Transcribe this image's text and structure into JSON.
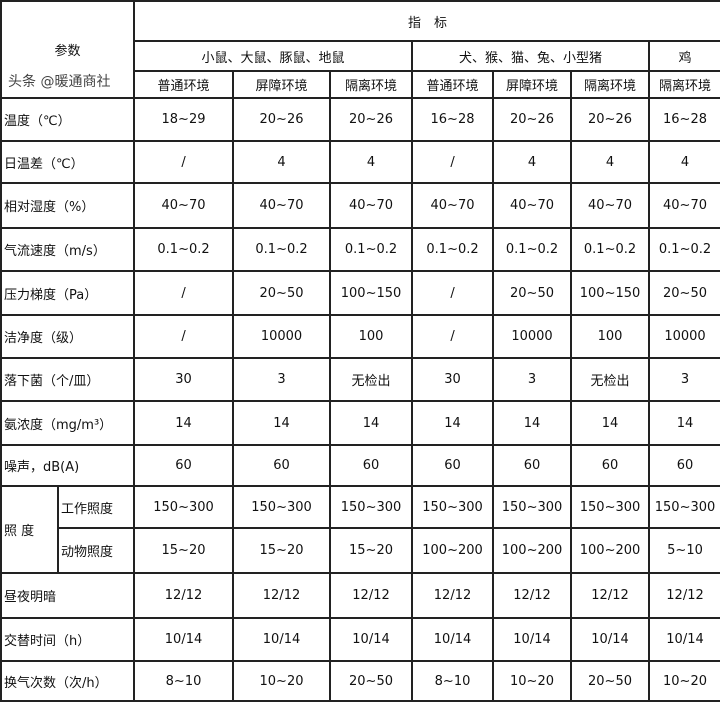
{
  "header": {
    "param_label": "参数",
    "indicator_label": "指　标",
    "groups": [
      "小鼠、大鼠、豚鼠、地鼠",
      "犬、猴、猫、兔、小型猪",
      "鸡"
    ],
    "environments": [
      "普通环境",
      "屏障环境",
      "隔离环境",
      "普通环境",
      "屏障环境",
      "隔离环境",
      "隔离环境"
    ]
  },
  "rows": [
    {
      "label": "温度（℃）",
      "values": [
        "18~29",
        "20~26",
        "20~26",
        "16~28",
        "20~26",
        "20~26",
        "16~28"
      ]
    },
    {
      "label": "日温差（℃）",
      "values": [
        "/",
        "4",
        "4",
        "/",
        "4",
        "4",
        "4"
      ]
    },
    {
      "label": "相对湿度（%）",
      "values": [
        "40~70",
        "40~70",
        "40~70",
        "40~70",
        "40~70",
        "40~70",
        "40~70"
      ]
    },
    {
      "label": "气流速度（m/s）",
      "values": [
        "0.1~0.2",
        "0.1~0.2",
        "0.1~0.2",
        "0.1~0.2",
        "0.1~0.2",
        "0.1~0.2",
        "0.1~0.2"
      ]
    },
    {
      "label": "压力梯度（Pa）",
      "values": [
        "/",
        "20~50",
        "100~150",
        "/",
        "20~50",
        "100~150",
        "20~50"
      ]
    },
    {
      "label": "洁净度（级）",
      "values": [
        "/",
        "10000",
        "100",
        "/",
        "10000",
        "100",
        "10000"
      ]
    },
    {
      "label": "落下菌（个/皿）",
      "values": [
        "30",
        "3",
        "无检出",
        "30",
        "3",
        "无检出",
        "3"
      ]
    },
    {
      "label": "氨浓度（mg/m³）",
      "values": [
        "14",
        "14",
        "14",
        "14",
        "14",
        "14",
        "14"
      ]
    },
    {
      "label": "噪声，dB(A)",
      "values": [
        "60",
        "60",
        "60",
        "60",
        "60",
        "60",
        "60"
      ]
    }
  ],
  "illuminance": {
    "label": "照 度",
    "rows": [
      {
        "label": "工作照度",
        "values": [
          "150~300",
          "150~300",
          "150~300",
          "150~300",
          "150~300",
          "150~300",
          "150~300"
        ]
      },
      {
        "label": "动物照度",
        "values": [
          "15~20",
          "15~20",
          "15~20",
          "100~200",
          "100~200",
          "100~200",
          "5~10"
        ]
      }
    ]
  },
  "rows_bottom": [
    {
      "label": "昼夜明暗",
      "values": [
        "12/12",
        "12/12",
        "12/12",
        "12/12",
        "12/12",
        "12/12",
        "12/12"
      ]
    },
    {
      "label": "交替时间（h）",
      "values": [
        "10/14",
        "10/14",
        "10/14",
        "10/14",
        "10/14",
        "10/14",
        "10/14"
      ]
    },
    {
      "label": "换气次数（次/h）",
      "values": [
        "8~10",
        "10~20",
        "20~50",
        "8~10",
        "10~20",
        "20~50",
        "10~20"
      ]
    }
  ],
  "watermark": "头条 @暖通商社"
}
